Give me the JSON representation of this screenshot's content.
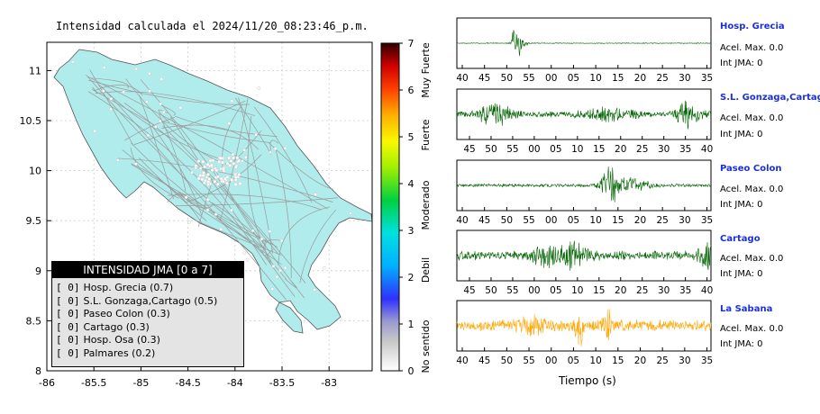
{
  "map": {
    "title": "Intensidad calculada el 2024/11/20_08:23:46_p.m.",
    "x_ticks": [
      "-86",
      "-85.5",
      "-85",
      "-84.5",
      "-84",
      "-83.5",
      "-83"
    ],
    "y_ticks": [
      "8",
      "8.5",
      "9",
      "9.5",
      "10",
      "10.5",
      "11"
    ],
    "land_color": "#b0ecec"
  },
  "colorbar": {
    "ticks": [
      "0",
      "1",
      "2",
      "3",
      "4",
      "5",
      "6",
      "7"
    ],
    "category_labels": [
      "No sentido",
      "Debil",
      "Moderado",
      "Fuerte",
      "Muy Fuerte"
    ]
  },
  "legend": {
    "title": "INTENSIDAD JMA [0 a 7]",
    "items": [
      {
        "level": "[ 0]",
        "label": "Hosp. Grecia (0.7)"
      },
      {
        "level": "[ 0]",
        "label": "S.L. Gonzaga,Cartago (0.5)"
      },
      {
        "level": "[ 0]",
        "label": "Paseo Colon (0.3)"
      },
      {
        "level": "[ 0]",
        "label": "Cartago (0.3)"
      },
      {
        "level": "[ 0]",
        "label": "Hosp. Osa (0.3)"
      },
      {
        "level": "[ 0]",
        "label": "Palmares (0.2)"
      }
    ]
  },
  "chart_data": [
    {
      "type": "line",
      "name": "Hosp. Grecia",
      "color": "#006400",
      "x_tick_labels": [
        "40",
        "45",
        "50",
        "55",
        "00",
        "05",
        "10",
        "15",
        "20",
        "25",
        "30",
        "35"
      ],
      "accel_max": "Acel. Max. 0.0",
      "int_jma": "Int JMA: 0"
    },
    {
      "type": "line",
      "name": "S.L. Gonzaga,Cartago",
      "color": "#006400",
      "x_tick_labels": [
        "45",
        "50",
        "55",
        "00",
        "05",
        "10",
        "15",
        "20",
        "25",
        "30",
        "35",
        "40"
      ],
      "accel_max": "Acel. Max. 0.0",
      "int_jma": "Int JMA: 0"
    },
    {
      "type": "line",
      "name": "Paseo Colon",
      "color": "#006400",
      "x_tick_labels": [
        "40",
        "45",
        "50",
        "55",
        "00",
        "05",
        "10",
        "15",
        "20",
        "25",
        "30",
        "35"
      ],
      "accel_max": "Acel. Max. 0.0",
      "int_jma": "Int JMA: 0"
    },
    {
      "type": "line",
      "name": "Cartago",
      "color": "#006400",
      "x_tick_labels": [
        "45",
        "50",
        "55",
        "00",
        "05",
        "10",
        "15",
        "20",
        "25",
        "30",
        "35",
        "40"
      ],
      "accel_max": "Acel. Max. 0.0",
      "int_jma": "Int JMA: 0"
    },
    {
      "type": "line",
      "name": "La Sabana",
      "color": "#ffa500",
      "x_tick_labels": [
        "40",
        "45",
        "50",
        "55",
        "00",
        "05",
        "10",
        "15",
        "20",
        "25",
        "30",
        "35"
      ],
      "accel_max": "Acel. Max. 0.0",
      "int_jma": "Int JMA: 0"
    }
  ],
  "xlabel": "Tiempo (s)"
}
